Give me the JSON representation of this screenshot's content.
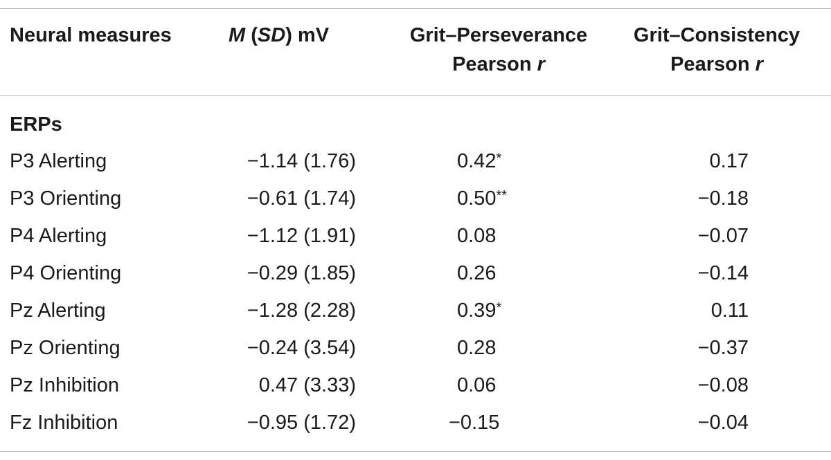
{
  "table": {
    "headers": {
      "col1": "Neural measures",
      "col2_m": "M",
      "col2_open": " (",
      "col2_sd": "SD",
      "col2_close": ") mV",
      "col3_line1": "Grit–Perseverance",
      "col3_line2_text": "Pearson ",
      "col3_line2_ital": "r",
      "col4_line1": "Grit–Consistency",
      "col4_line2_text": "Pearson ",
      "col4_line2_ital": "r"
    },
    "section_label": "ERPs",
    "rows": [
      {
        "label": "P3 Alerting",
        "msd": "−1.14 (1.76)",
        "gp": "0.42",
        "gp_sig": "*",
        "gc": "0.17"
      },
      {
        "label": "P3 Orienting",
        "msd": "−0.61 (1.74)",
        "gp": "0.50",
        "gp_sig": "**",
        "gc": "−0.18"
      },
      {
        "label": "P4 Alerting",
        "msd": "−1.12 (1.91)",
        "gp": "0.08",
        "gp_sig": "",
        "gc": "−0.07"
      },
      {
        "label": "P4 Orienting",
        "msd": "−0.29 (1.85)",
        "gp": "0.26",
        "gp_sig": "",
        "gc": "−0.14"
      },
      {
        "label": "Pz Alerting",
        "msd": "−1.28 (2.28)",
        "gp": "0.39",
        "gp_sig": "*",
        "gc": "0.11"
      },
      {
        "label": "Pz Orienting",
        "msd": "−0.24 (3.54)",
        "gp": "0.28",
        "gp_sig": "",
        "gc": "−0.37"
      },
      {
        "label": "Pz Inhibition",
        "msd": "0.47 (3.33)",
        "gp": "0.06",
        "gp_sig": "",
        "gc": "−0.08"
      },
      {
        "label": "Fz Inhibition",
        "msd": "−0.95 (1.72)",
        "gp": "−0.15",
        "gp_sig": "",
        "gc": "−0.04"
      }
    ]
  }
}
